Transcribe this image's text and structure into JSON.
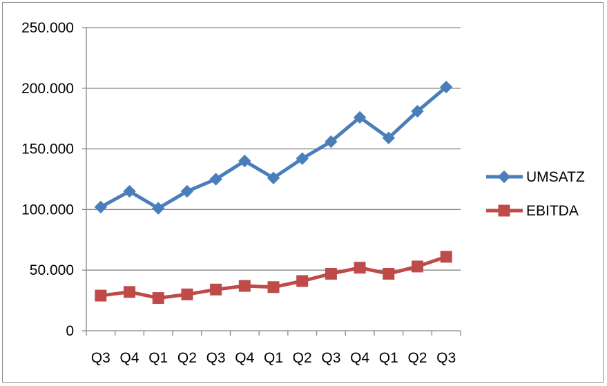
{
  "chart_data": {
    "type": "line",
    "title": "",
    "xlabel": "",
    "ylabel": "",
    "categories": [
      "Q3",
      "Q4",
      "Q1",
      "Q2",
      "Q3",
      "Q4",
      "Q1",
      "Q2",
      "Q3",
      "Q4",
      "Q1",
      "Q2",
      "Q3"
    ],
    "ylim": [
      0,
      250000
    ],
    "yticks": [
      0,
      50000,
      100000,
      150000,
      200000,
      250000
    ],
    "ytick_labels": [
      "0",
      "50.000",
      "100.000",
      "150.000",
      "200.000",
      "250.000"
    ],
    "grid": true,
    "legend_position": "right",
    "series": [
      {
        "name": "UMSATZ",
        "color": "#4a7ebb",
        "marker": "diamond",
        "values": [
          102000,
          115000,
          101000,
          115000,
          125000,
          140000,
          126000,
          142000,
          156000,
          176000,
          159000,
          181000,
          201000
        ]
      },
      {
        "name": "EBITDA",
        "color": "#be4b48",
        "marker": "square",
        "values": [
          29000,
          32000,
          27000,
          30000,
          34000,
          37000,
          36000,
          41000,
          47000,
          52000,
          47000,
          53000,
          61000
        ]
      }
    ]
  }
}
